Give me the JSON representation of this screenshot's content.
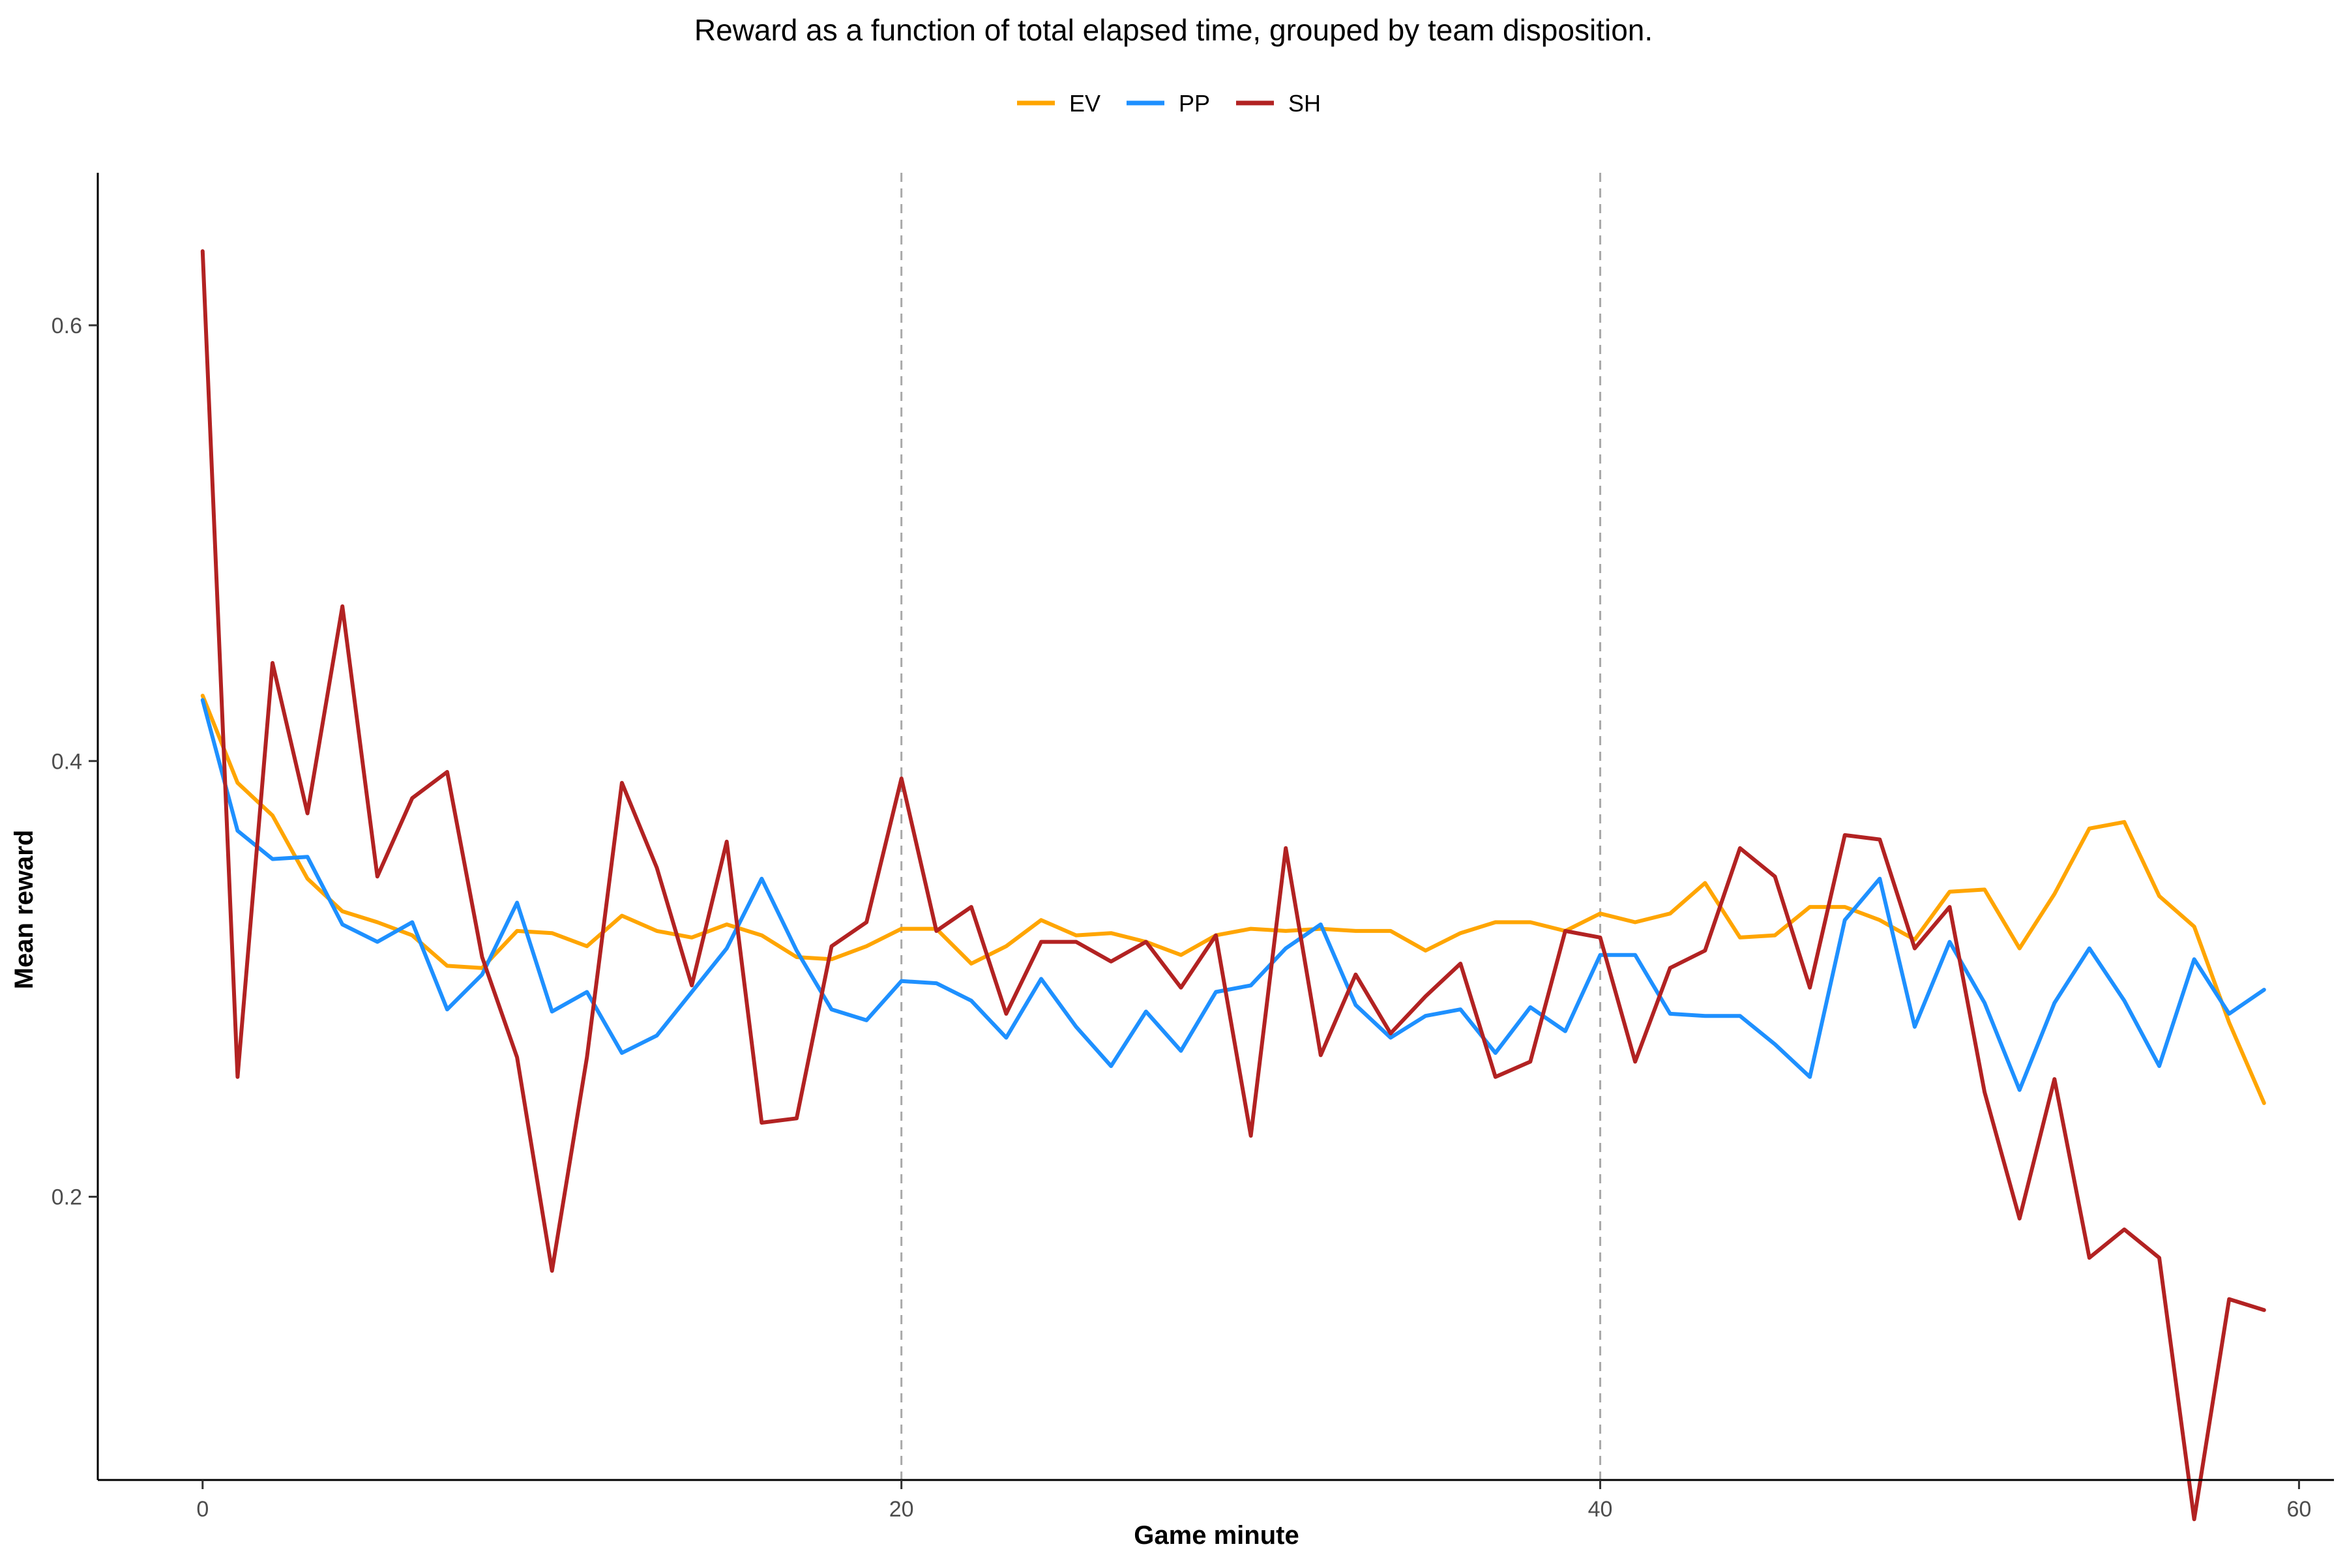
{
  "chart_data": {
    "type": "line",
    "title": "Reward as a function of total elapsed time, grouped by team disposition.",
    "xlabel": "Game minute",
    "ylabel": "Mean reward",
    "xlim": [
      -3,
      61
    ],
    "ylim": [
      0.07,
      0.67
    ],
    "xticks": [
      0,
      20,
      40,
      60
    ],
    "yticks": [
      0.2,
      0.4,
      0.6
    ],
    "xtick_labels": [
      "0",
      "20",
      "40",
      "60"
    ],
    "ytick_labels": [
      "0.2",
      "0.4",
      "0.6"
    ],
    "grid": false,
    "vlines": [
      20,
      40
    ],
    "legend_position": "top-center",
    "x": [
      0,
      1,
      2,
      3,
      4,
      5,
      6,
      7,
      8,
      9,
      10,
      11,
      12,
      13,
      14,
      15,
      16,
      17,
      18,
      19,
      20,
      21,
      22,
      23,
      24,
      25,
      26,
      27,
      28,
      29,
      30,
      31,
      32,
      33,
      34,
      35,
      36,
      37,
      38,
      39,
      40,
      41,
      42,
      43,
      44,
      45,
      46,
      47,
      48,
      49,
      50,
      51,
      52,
      53,
      54,
      55,
      56,
      57,
      58,
      59
    ],
    "series": [
      {
        "name": "EV",
        "color": "#FFA500",
        "values": [
          0.43,
          0.39,
          0.375,
          0.346,
          0.331,
          0.326,
          0.32,
          0.306,
          0.305,
          0.322,
          0.321,
          0.315,
          0.329,
          0.322,
          0.319,
          0.325,
          0.32,
          0.31,
          0.309,
          0.315,
          0.323,
          0.323,
          0.307,
          0.315,
          0.327,
          0.32,
          0.321,
          0.317,
          0.311,
          0.32,
          0.323,
          0.322,
          0.323,
          0.322,
          0.322,
          0.313,
          0.321,
          0.326,
          0.326,
          0.322,
          0.33,
          0.326,
          0.33,
          0.344,
          0.319,
          0.32,
          0.333,
          0.333,
          0.327,
          0.318,
          0.34,
          0.341,
          0.314,
          0.339,
          0.369,
          0.372,
          0.338,
          0.324,
          0.28,
          0.243
        ]
      },
      {
        "name": "PP",
        "color": "#1E90FF",
        "values": [
          0.428,
          0.368,
          0.355,
          0.356,
          0.325,
          0.317,
          0.326,
          0.286,
          0.302,
          0.335,
          0.285,
          0.294,
          0.266,
          0.274,
          0.294,
          0.314,
          0.346,
          0.313,
          0.286,
          0.281,
          0.299,
          0.298,
          0.29,
          0.273,
          0.3,
          0.278,
          0.26,
          0.285,
          0.267,
          0.294,
          0.297,
          0.314,
          0.325,
          0.288,
          0.273,
          0.283,
          0.286,
          0.266,
          0.287,
          0.276,
          0.311,
          0.311,
          0.284,
          0.283,
          0.283,
          0.27,
          0.255,
          0.327,
          0.346,
          0.278,
          0.317,
          0.289,
          0.249,
          0.289,
          0.314,
          0.29,
          0.26,
          0.309,
          0.284,
          0.295
        ]
      },
      {
        "name": "SH",
        "color": "#B22222",
        "values": [
          0.634,
          0.255,
          0.445,
          0.376,
          0.471,
          0.347,
          0.383,
          0.395,
          0.31,
          0.264,
          0.166,
          0.264,
          0.39,
          0.351,
          0.297,
          0.363,
          0.234,
          0.236,
          0.315,
          0.326,
          0.392,
          0.322,
          0.333,
          0.284,
          0.317,
          0.317,
          0.308,
          0.317,
          0.296,
          0.32,
          0.228,
          0.36,
          0.265,
          0.302,
          0.275,
          0.292,
          0.307,
          0.255,
          0.262,
          0.322,
          0.319,
          0.262,
          0.305,
          0.313,
          0.36,
          0.347,
          0.296,
          0.366,
          0.364,
          0.314,
          0.333,
          0.248,
          0.19,
          0.254,
          0.172,
          0.185,
          0.172,
          0.052,
          0.153,
          0.148
        ]
      }
    ]
  }
}
